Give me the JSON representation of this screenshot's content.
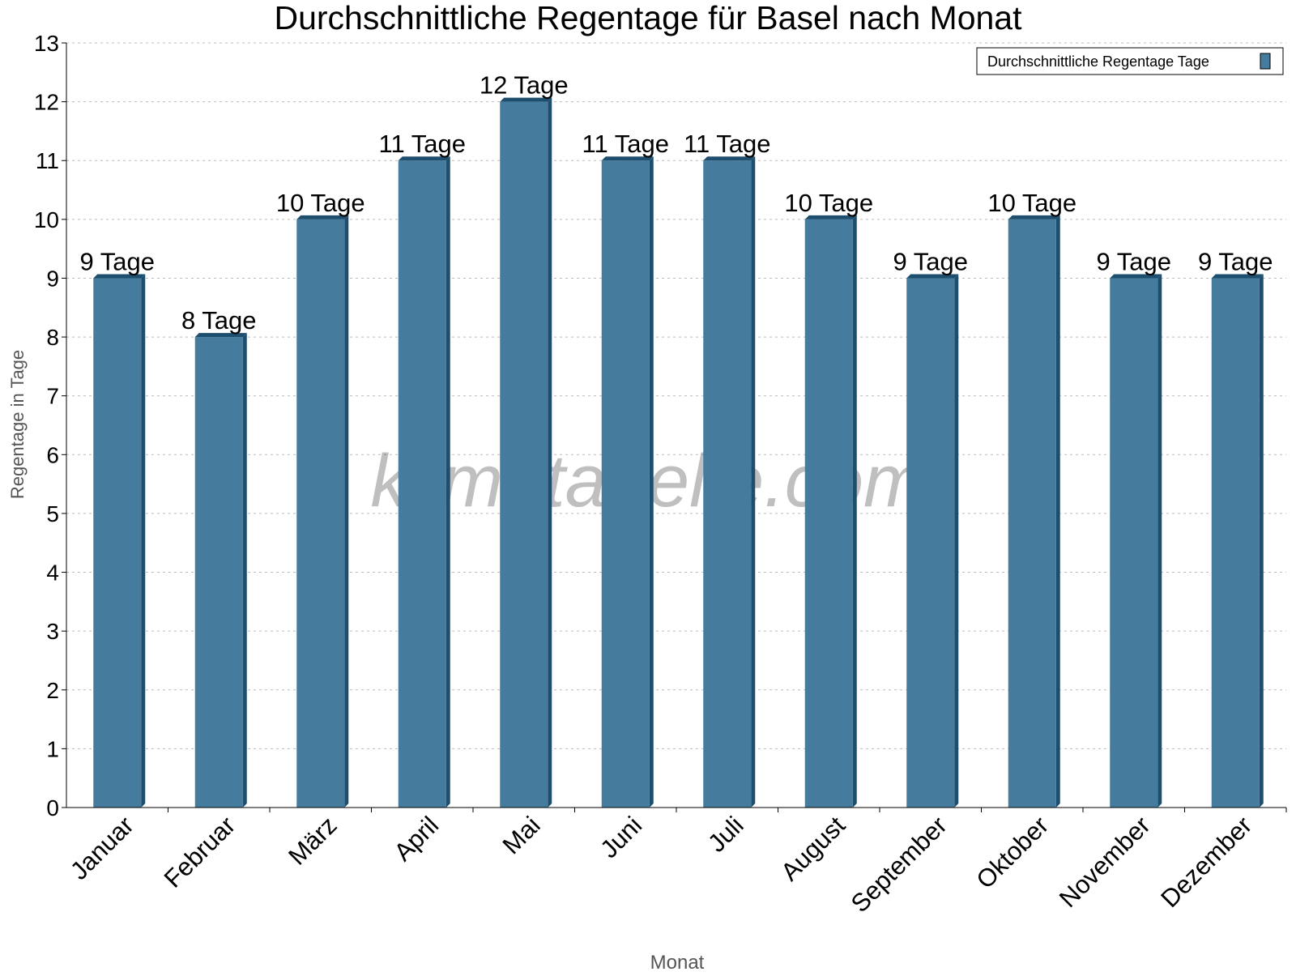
{
  "chart_data": {
    "type": "bar",
    "title": "Durchschnittliche Regentage für Basel nach Monat",
    "xlabel": "Monat",
    "ylabel": "Regentage in Tage",
    "categories": [
      "Januar",
      "Februar",
      "März",
      "April",
      "Mai",
      "Juni",
      "Juli",
      "August",
      "September",
      "Oktober",
      "November",
      "Dezember"
    ],
    "series": [
      {
        "name": "Durchschnittliche Regentage Tage",
        "values": [
          9,
          8,
          10,
          11,
          12,
          11,
          11,
          10,
          9,
          10,
          9,
          9
        ],
        "color": "#457b9d",
        "side_color": "#1d4e6e"
      }
    ],
    "data_labels": [
      "9 Tage",
      "8 Tage",
      "10 Tage",
      "11 Tage",
      "12 Tage",
      "11 Tage",
      "11 Tage",
      "10 Tage",
      "9 Tage",
      "10 Tage",
      "9 Tage",
      "9 Tage"
    ],
    "ylim": [
      0,
      13
    ],
    "yticks": [
      "0",
      "1",
      "2",
      "3",
      "4",
      "5",
      "6",
      "7",
      "8",
      "9",
      "10",
      "11",
      "12",
      "13"
    ],
    "grid": true,
    "legend_position": "top-right",
    "watermark": "klimatabelle.com"
  }
}
